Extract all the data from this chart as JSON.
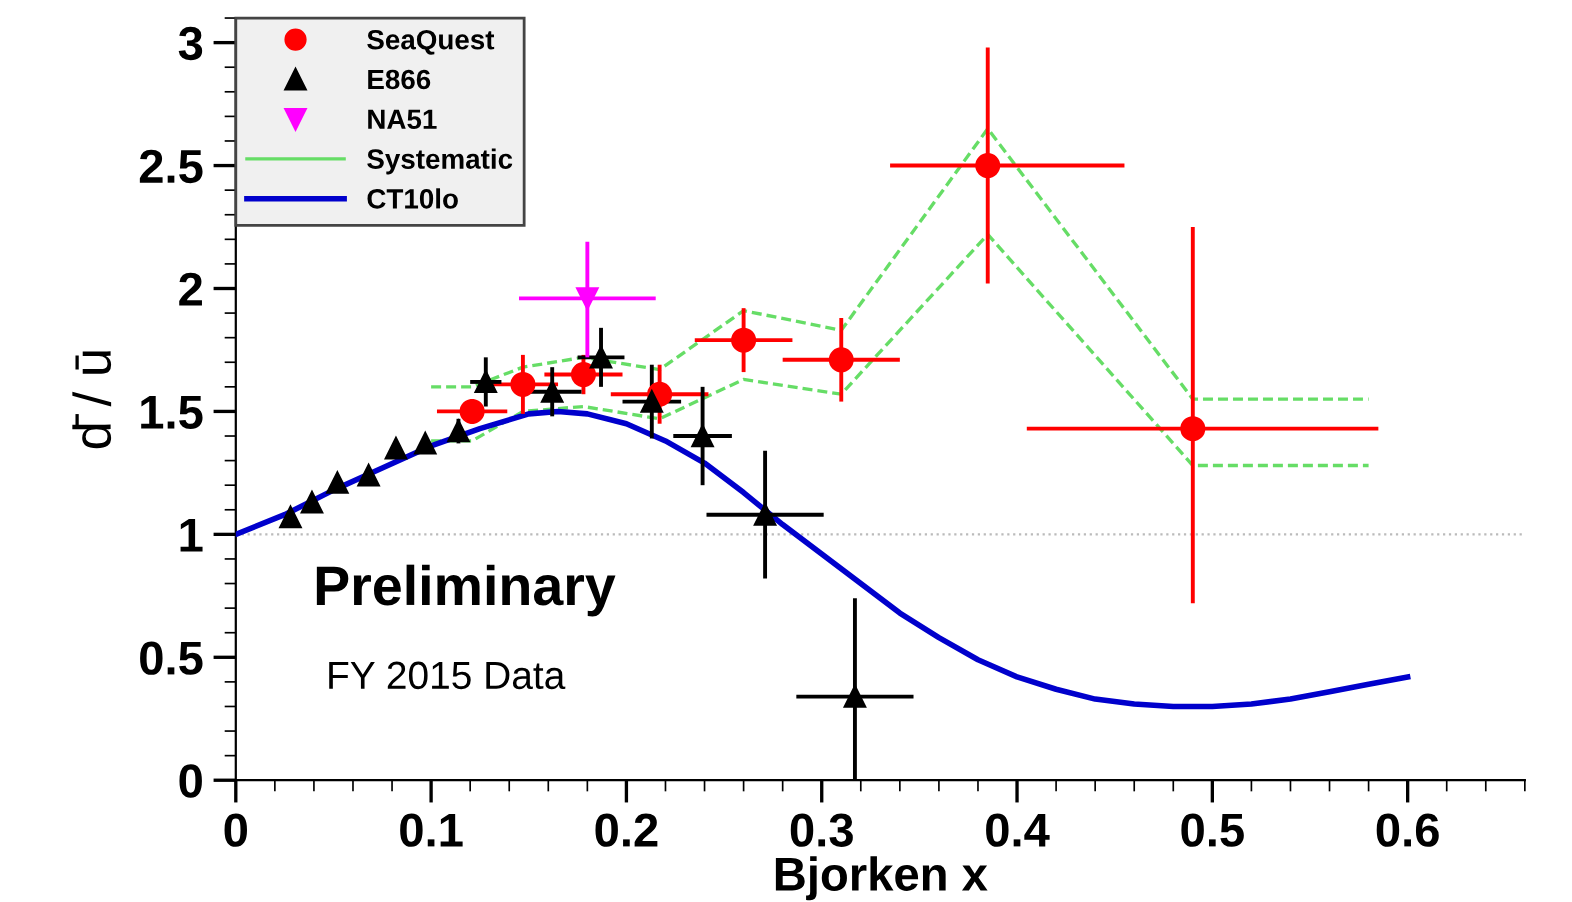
{
  "chart_data": {
    "type": "scatter",
    "xlabel": "Bjorken x",
    "ylabel": "d̄ / ū",
    "xlim": [
      0,
      0.66
    ],
    "ylim": [
      0,
      3.1
    ],
    "xticks": [
      0,
      0.1,
      0.2,
      0.3,
      0.4,
      0.5,
      0.6
    ],
    "yticks": [
      0,
      0.5,
      1,
      1.5,
      2,
      2.5,
      3
    ],
    "grid": false,
    "legend": "top left",
    "ref_lines": [
      {
        "axis": "y",
        "value": 1,
        "color": "#bbbbbb",
        "line_style": "dotted"
      }
    ],
    "annotations": [
      "Preliminary",
      "FY 2015 Data"
    ],
    "series": [
      {
        "name": "SeaQuest",
        "marker": "circle",
        "color": "#ff0000",
        "x": [
          0.121,
          0.147,
          0.178,
          0.217,
          0.26,
          0.31,
          0.385,
          0.49
        ],
        "values": [
          1.5,
          1.61,
          1.65,
          1.57,
          1.79,
          1.71,
          2.5,
          1.43
        ],
        "errors": [
          0.05,
          0.12,
          0.08,
          0.12,
          0.13,
          0.17,
          0.48,
          [
            0.72,
            2.25
          ]
        ],
        "xerrors": [
          0.018,
          0.018,
          0.02,
          0.025,
          0.025,
          0.03,
          [
            0.335,
            0.455
          ],
          [
            0.405,
            0.585
          ]
        ]
      },
      {
        "name": "E866",
        "marker": "triangle",
        "color": "#000000",
        "x": [
          0.028,
          0.039,
          0.052,
          0.068,
          0.082,
          0.097,
          0.114,
          0.128,
          0.162,
          0.187,
          0.213,
          0.239,
          0.271,
          0.317
        ],
        "values": [
          1.07,
          1.13,
          1.21,
          1.24,
          1.35,
          1.37,
          1.42,
          1.62,
          1.58,
          1.72,
          1.54,
          1.4,
          1.08,
          0.34
        ],
        "errors": [
          0.02,
          0.02,
          0.02,
          0.02,
          0.03,
          0.03,
          0.05,
          0.1,
          0.1,
          0.12,
          0.15,
          0.2,
          0.26,
          0.4
        ],
        "xerrors": [
          null,
          null,
          null,
          null,
          null,
          null,
          null,
          0.008,
          0.015,
          0.012,
          0.015,
          0.015,
          0.03,
          0.03
        ]
      },
      {
        "name": "NA51",
        "marker": "triangle_down",
        "color": "#ff00ff",
        "x": [
          0.18
        ],
        "values": [
          1.96
        ],
        "errors": [
          [
            1.72,
            2.19
          ]
        ],
        "xerrors": [
          0.035
        ]
      },
      {
        "name": "Systematic",
        "type": "line",
        "line_style": "dashed",
        "marker": "none",
        "color": "#66dd66",
        "x": [
          0.1,
          0.121,
          0.147,
          0.178,
          0.217,
          0.26,
          0.31,
          0.385,
          0.49,
          0.58
        ],
        "values": [
          1.6,
          1.6,
          1.68,
          1.72,
          1.67,
          1.91,
          1.83,
          2.65,
          1.55,
          1.55
        ]
      },
      {
        "type": "line",
        "line_style": "dashed",
        "marker": "none",
        "color": "#66dd66",
        "x": [
          0.1,
          0.121,
          0.147,
          0.178,
          0.217,
          0.26,
          0.31,
          0.385,
          0.49,
          0.58
        ],
        "values": [
          1.38,
          1.38,
          1.5,
          1.52,
          1.47,
          1.63,
          1.57,
          2.22,
          1.28,
          1.28
        ]
      },
      {
        "name": "CT10lo",
        "type": "line",
        "line_style": "solid",
        "marker": "none",
        "color": "#0000cc",
        "x": [
          0,
          0.025,
          0.05,
          0.075,
          0.1,
          0.125,
          0.15,
          0.165,
          0.18,
          0.2,
          0.22,
          0.24,
          0.26,
          0.28,
          0.3,
          0.32,
          0.34,
          0.36,
          0.38,
          0.4,
          0.42,
          0.44,
          0.46,
          0.48,
          0.5,
          0.52,
          0.54,
          0.56,
          0.58,
          0.6
        ],
        "values": [
          1.0,
          1.08,
          1.18,
          1.27,
          1.36,
          1.43,
          1.49,
          1.5,
          1.49,
          1.45,
          1.38,
          1.29,
          1.17,
          1.04,
          0.92,
          0.8,
          0.68,
          0.58,
          0.49,
          0.42,
          0.37,
          0.33,
          0.31,
          0.3,
          0.3,
          0.31,
          0.33,
          0.36,
          0.39,
          0.42
        ]
      }
    ]
  }
}
